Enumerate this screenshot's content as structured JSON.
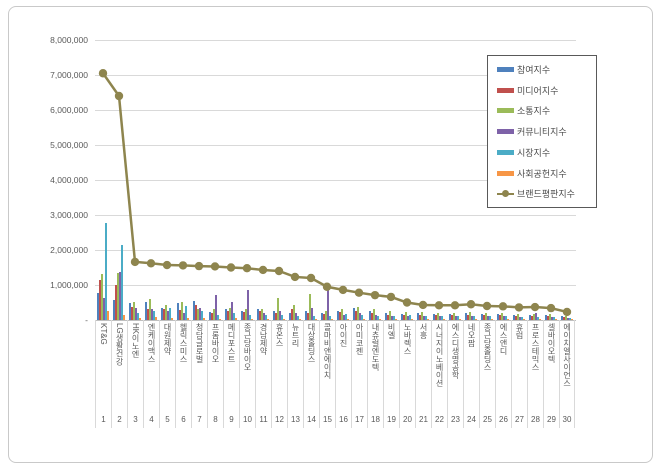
{
  "chart_data": {
    "type": "combo-bar-line",
    "title": "",
    "grid": true,
    "legend_position": "right-inside",
    "categories": [
      "KT&G",
      "LG생활건강",
      "HK이노엔",
      "엔케이맥스",
      "대원제약",
      "헬릭스미스",
      "청담글로벌",
      "프롬바이오",
      "메디포스트",
      "종근당바이오",
      "경남제약",
      "휴온스",
      "뉴트리",
      "대상홀딩스",
      "콜마비앤에이치",
      "아이진",
      "아미코젠",
      "내츄럴엔도텍",
      "비엘",
      "노바렉스",
      "서흥",
      "시너지이노베이션",
      "에스디생명공학",
      "네오팜",
      "종근당홀딩스",
      "에스앤디",
      "휴럼",
      "프로스테믹스",
      "셀바이오텍",
      "에이치엘사이언스"
    ],
    "ranks": [
      "1",
      "2",
      "3",
      "4",
      "5",
      "6",
      "7",
      "8",
      "9",
      "10",
      "11",
      "12",
      "13",
      "14",
      "15",
      "16",
      "17",
      "18",
      "19",
      "20",
      "21",
      "22",
      "23",
      "24",
      "25",
      "26",
      "27",
      "28",
      "29",
      "30"
    ],
    "bar_series": [
      {
        "name": "참여지수",
        "color": "#4F81BD",
        "values": [
          770000,
          570000,
          480000,
          500000,
          350000,
          490000,
          550000,
          230000,
          300000,
          250000,
          300000,
          250000,
          200000,
          250000,
          200000,
          270000,
          330000,
          250000,
          200000,
          180000,
          200000,
          180000,
          170000,
          200000,
          170000,
          160000,
          150000,
          150000,
          140000,
          100000
        ]
      },
      {
        "name": "미디어지수",
        "color": "#C0504D",
        "values": [
          1150000,
          1000000,
          380000,
          300000,
          300000,
          280000,
          430000,
          200000,
          250000,
          220000,
          250000,
          200000,
          300000,
          200000,
          180000,
          230000,
          250000,
          200000,
          150000,
          150000,
          150000,
          140000,
          140000,
          150000,
          130000,
          130000,
          120000,
          120000,
          110000,
          80000
        ]
      },
      {
        "name": "소통지수",
        "color": "#9BBB59",
        "values": [
          1300000,
          1340000,
          520000,
          590000,
          430000,
          510000,
          300000,
          320000,
          350000,
          300000,
          300000,
          630000,
          430000,
          740000,
          250000,
          300000,
          370000,
          300000,
          250000,
          220000,
          220000,
          200000,
          200000,
          230000,
          200000,
          190000,
          180000,
          180000,
          170000,
          120000
        ]
      },
      {
        "name": "커뮤니티지수",
        "color": "#7E62A8",
        "values": [
          630000,
          1370000,
          330000,
          300000,
          250000,
          200000,
          350000,
          700000,
          520000,
          850000,
          200000,
          250000,
          200000,
          330000,
          950000,
          150000,
          200000,
          150000,
          120000,
          100000,
          120000,
          100000,
          100000,
          120000,
          100000,
          100000,
          90000,
          200000,
          90000,
          60000
        ]
      },
      {
        "name": "시장지수",
        "color": "#4BACC6",
        "values": [
          2770000,
          2150000,
          200000,
          250000,
          330000,
          400000,
          250000,
          150000,
          200000,
          150000,
          150000,
          150000,
          100000,
          100000,
          100000,
          180000,
          150000,
          120000,
          100000,
          150000,
          100000,
          120000,
          100000,
          100000,
          100000,
          100000,
          90000,
          90000,
          90000,
          60000
        ]
      },
      {
        "name": "사회공헌지수",
        "color": "#F79646",
        "values": [
          260000,
          140000,
          50000,
          80000,
          60000,
          60000,
          50000,
          40000,
          50000,
          40000,
          40000,
          40000,
          40000,
          40000,
          40000,
          40000,
          40000,
          30000,
          30000,
          30000,
          30000,
          30000,
          30000,
          30000,
          30000,
          30000,
          25000,
          25000,
          25000,
          20000
        ]
      }
    ],
    "line_series": {
      "name": "브랜드평판지수",
      "color": "#8E854E",
      "values": [
        7050000,
        6400000,
        1660000,
        1620000,
        1570000,
        1560000,
        1540000,
        1530000,
        1500000,
        1480000,
        1430000,
        1400000,
        1230000,
        1200000,
        950000,
        860000,
        780000,
        710000,
        660000,
        500000,
        430000,
        420000,
        420000,
        450000,
        400000,
        390000,
        360000,
        370000,
        340000,
        230000
      ]
    },
    "y_axis": {
      "min": 0,
      "max": 8000000,
      "tick_interval": 1000000,
      "tick_labels": [
        "8,000,000",
        "7,000,000",
        "6,000,000",
        "5,000,000",
        "4,000,000",
        "3,000,000",
        "2,000,000",
        "1,000,000",
        "-"
      ]
    },
    "legend_entries": [
      "참여지수",
      "미디어지수",
      "소통지수",
      "커뮤니티지수",
      "시장지수",
      "사회공헌지수",
      "브랜드평판지수"
    ]
  }
}
